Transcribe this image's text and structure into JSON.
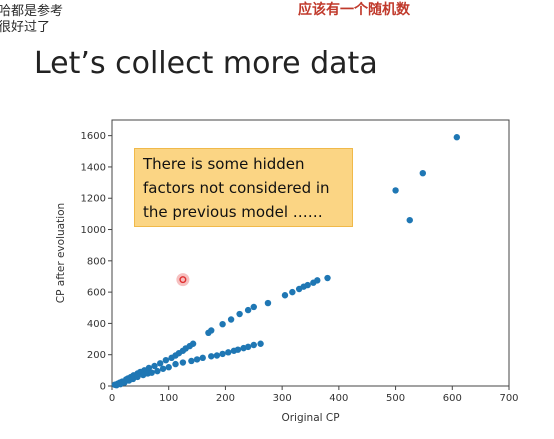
{
  "notes": {
    "left_line1": "哈都是参考",
    "left_line2": "很好过了",
    "right": "应该有一个随机数"
  },
  "slide": {
    "title": "Let’s collect more data"
  },
  "callout": {
    "text": "There is some hidden\nfactors not considered in\nthe previous model ……"
  },
  "colors": {
    "point": "#1f77b4",
    "callout_fill": "#fbd584",
    "highlight": "#e03030"
  },
  "chart_data": {
    "type": "scatter",
    "xlabel": "Original CP",
    "ylabel": "CP after evoluation",
    "xlim": [
      0,
      700
    ],
    "ylim": [
      0,
      1700
    ],
    "xticks": [
      0,
      100,
      200,
      300,
      400,
      500,
      600,
      700
    ],
    "yticks": [
      0,
      200,
      400,
      600,
      800,
      1000,
      1200,
      1400,
      1600
    ],
    "grid": false,
    "highlighted_point": {
      "x": 125,
      "y": 680
    },
    "series": [
      {
        "points": [
          [
            5,
            8
          ],
          [
            10,
            15
          ],
          [
            14,
            22
          ],
          [
            18,
            28
          ],
          [
            25,
            42
          ],
          [
            28,
            48
          ],
          [
            33,
            57
          ],
          [
            38,
            68
          ],
          [
            45,
            80
          ],
          [
            50,
            90
          ],
          [
            57,
            100
          ],
          [
            65,
            115
          ],
          [
            75,
            128
          ],
          [
            85,
            145
          ],
          [
            95,
            165
          ],
          [
            105,
            180
          ],
          [
            112,
            195
          ],
          [
            118,
            210
          ],
          [
            125,
            225
          ],
          [
            130,
            240
          ],
          [
            137,
            255
          ],
          [
            143,
            270
          ],
          [
            170,
            340
          ],
          [
            175,
            355
          ],
          [
            195,
            395
          ],
          [
            210,
            425
          ],
          [
            225,
            460
          ],
          [
            240,
            485
          ],
          [
            250,
            505
          ],
          [
            275,
            530
          ],
          [
            305,
            580
          ],
          [
            318,
            600
          ],
          [
            330,
            620
          ],
          [
            338,
            635
          ],
          [
            345,
            645
          ],
          [
            355,
            660
          ],
          [
            362,
            675
          ],
          [
            380,
            690
          ],
          [
            8,
            5
          ],
          [
            15,
            12
          ],
          [
            22,
            22
          ],
          [
            30,
            35
          ],
          [
            37,
            45
          ],
          [
            45,
            58
          ],
          [
            55,
            70
          ],
          [
            63,
            80
          ],
          [
            70,
            85
          ],
          [
            80,
            95
          ],
          [
            90,
            110
          ],
          [
            100,
            120
          ],
          [
            112,
            140
          ],
          [
            125,
            150
          ],
          [
            140,
            160
          ],
          [
            150,
            170
          ],
          [
            160,
            180
          ],
          [
            175,
            190
          ],
          [
            185,
            195
          ],
          [
            195,
            205
          ],
          [
            205,
            215
          ],
          [
            215,
            225
          ],
          [
            222,
            232
          ],
          [
            232,
            242
          ],
          [
            240,
            250
          ],
          [
            250,
            262
          ],
          [
            262,
            270
          ],
          [
            500,
            1250
          ],
          [
            525,
            1060
          ],
          [
            548,
            1360
          ],
          [
            608,
            1590
          ]
        ]
      }
    ]
  }
}
